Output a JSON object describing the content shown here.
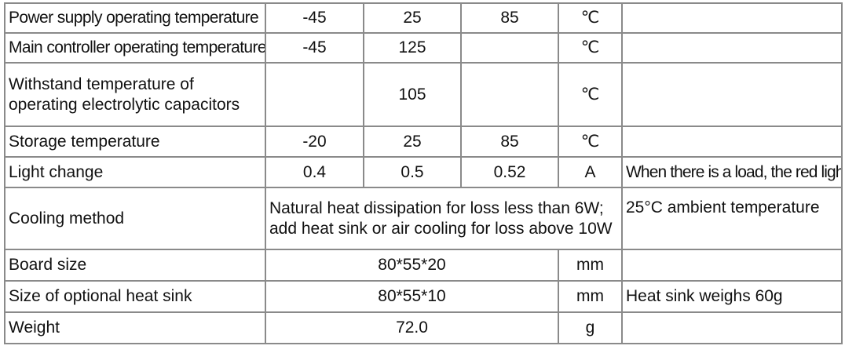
{
  "rows": {
    "power_supply": {
      "param": "Power supply operating temperature",
      "min": "-45",
      "typ": "25",
      "max": "85",
      "unit": "℃",
      "note": ""
    },
    "main_controller": {
      "param": "Main controller operating temperature",
      "min": "-45",
      "typ": "125",
      "max": "",
      "unit": "℃",
      "note": ""
    },
    "capacitors": {
      "param_line1": "Withstand temperature of",
      "param_line2": "operating electrolytic capacitors",
      "min": "",
      "typ": "105",
      "max": "",
      "unit": "℃",
      "note": ""
    },
    "storage": {
      "param": "Storage temperature",
      "min": "-20",
      "typ": "25",
      "max": "85",
      "unit": "℃",
      "note": ""
    },
    "light_change": {
      "param": "Light change",
      "min": "0.4",
      "typ": "0.5",
      "max": "0.52",
      "unit": "A",
      "note": "When there is a load, the red light will turn on"
    },
    "cooling": {
      "param": "Cooling method",
      "value_line1": "Natural heat dissipation for loss less than 6W;",
      "value_line2": "add heat sink or air cooling for loss above 10W",
      "note": "25°C ambient temperature"
    },
    "board_size": {
      "param": "Board size",
      "value": "80*55*20",
      "unit": "mm",
      "note": ""
    },
    "heat_sink": {
      "param": "Size of optional heat sink",
      "value": "80*55*10",
      "unit": "mm",
      "note": "Heat sink weighs 60g"
    },
    "weight": {
      "param": "Weight",
      "value": "72.0",
      "unit": "g",
      "note": ""
    }
  }
}
